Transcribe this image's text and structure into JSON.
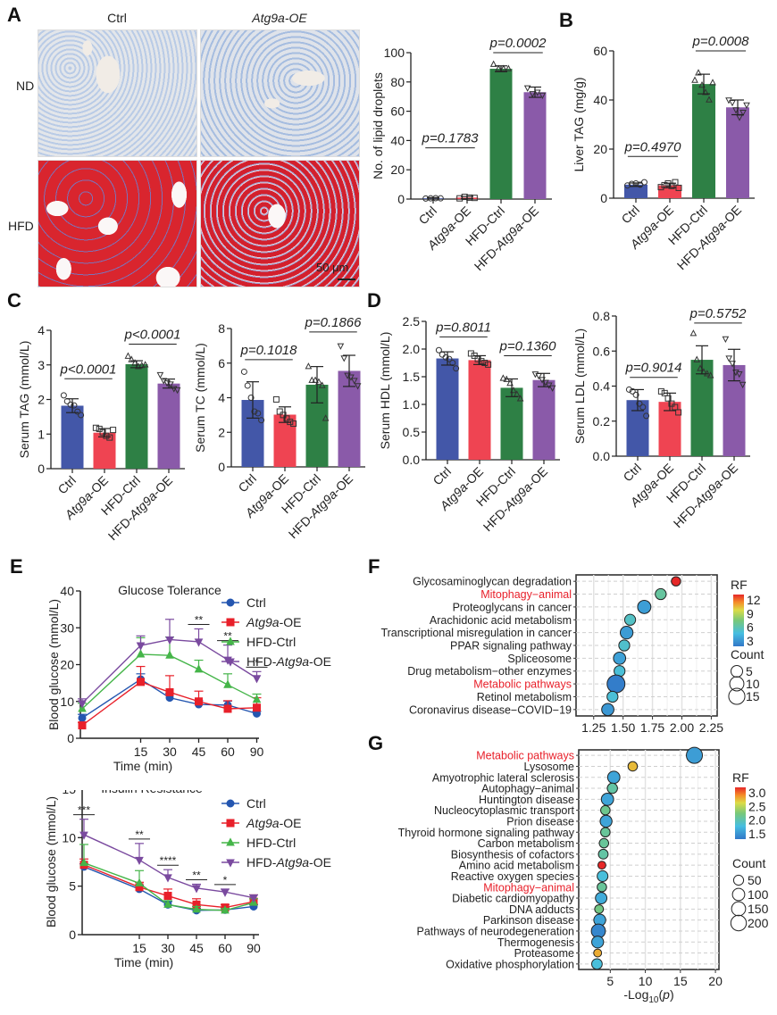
{
  "panel_labels": {
    "A": "A",
    "B": "B",
    "C": "C",
    "D": "D",
    "E": "E",
    "F": "F",
    "G": "G"
  },
  "micrographs": {
    "col_titles": [
      "Ctrl",
      "Atg9a-OE"
    ],
    "row_titles": [
      "ND",
      "HFD"
    ],
    "scale_bar": "50 μm",
    "stain_colors": {
      "nucleus_blue": "#7fa0d8",
      "lipid_red": "#d9252e",
      "background": "#e0e4ea"
    }
  },
  "groups": {
    "labels": [
      "Ctrl",
      "Atg9a-OE",
      "HFD-Ctrl",
      "HFD-Atg9a-OE"
    ],
    "colors": [
      "#4357a8",
      "#ef4452",
      "#2e8045",
      "#8a5aa9"
    ],
    "markers": [
      "circle",
      "square",
      "triangle-up",
      "triangle-down"
    ]
  },
  "chart_data": [
    {
      "id": "A-lipid",
      "type": "bar",
      "title": "",
      "xlabel": "",
      "ylabel": "No. of lipid droplets",
      "ylim": [
        0,
        100
      ],
      "yticks": [
        "0",
        "20",
        "40",
        "60",
        "80",
        "100"
      ],
      "categories": [
        "Ctrl",
        "Atg9a-OE",
        "HFD-Ctrl",
        "HFD-Atg9a-OE"
      ],
      "values": [
        0.5,
        1,
        89,
        73
      ],
      "errors": [
        0.5,
        0.8,
        2,
        3.5
      ],
      "points": [
        [
          0.4,
          0.5,
          0.6,
          0.5
        ],
        [
          0.5,
          1.5,
          1,
          0.8
        ],
        [
          92,
          89,
          89,
          89
        ],
        [
          76,
          72,
          73,
          71
        ]
      ],
      "comparisons": [
        {
          "pair": [
            0,
            1
          ],
          "label": "p=0.1783",
          "y": 35
        },
        {
          "pair": [
            2,
            3
          ],
          "label": "p=0.0002",
          "y": 100
        }
      ]
    },
    {
      "id": "B-liverTAG",
      "type": "bar",
      "ylabel": "Liver TAG (mg/g)",
      "ylim": [
        0,
        60
      ],
      "yticks": [
        "0",
        "20",
        "40",
        "60"
      ],
      "categories": [
        "Ctrl",
        "Atg9a-OE",
        "HFD-Ctrl",
        "HFD-Atg9a-OE"
      ],
      "values": [
        5.5,
        5.2,
        46.5,
        37
      ],
      "errors": [
        0.7,
        0.9,
        4,
        3
      ],
      "points": [
        [
          5.2,
          5.8,
          6,
          5.5,
          6.5
        ],
        [
          4.5,
          5.3,
          6,
          5,
          6.5,
          4.2
        ],
        [
          48,
          51,
          46,
          43,
          40,
          47
        ],
        [
          40,
          39,
          36,
          33,
          35,
          38
        ]
      ],
      "comparisons": [
        {
          "pair": [
            0,
            1
          ],
          "label": "p=0.4970",
          "y": 17
        },
        {
          "pair": [
            2,
            3
          ],
          "label": "p=0.0008",
          "y": 60
        }
      ]
    },
    {
      "id": "C-serumTAG",
      "type": "bar",
      "ylabel": "Serum TAG (mmol/L)",
      "ylim": [
        0,
        4
      ],
      "yticks": [
        "0",
        "1",
        "2",
        "3",
        "4"
      ],
      "categories": [
        "Ctrl",
        "Atg9a-OE",
        "HFD-Ctrl",
        "HFD-Atg9a-OE"
      ],
      "values": [
        1.82,
        1.04,
        3.02,
        2.46
      ],
      "errors": [
        0.2,
        0.12,
        0.1,
        0.13
      ],
      "points": [
        [
          2.12,
          1.95,
          1.85,
          1.83,
          1.65,
          1.55
        ],
        [
          1.18,
          1.15,
          1.05,
          0.95,
          0.9,
          1.12
        ],
        [
          3.25,
          3.15,
          3.05,
          2.95,
          2.98,
          3.0
        ],
        [
          2.72,
          2.55,
          2.48,
          2.45,
          2.32,
          2.28
        ]
      ],
      "comparisons": [
        {
          "pair": [
            0,
            1
          ],
          "label": "p<0.0001",
          "y": 2.6
        },
        {
          "pair": [
            2,
            3
          ],
          "label": "p<0.0001",
          "y": 3.6
        }
      ]
    },
    {
      "id": "C-serumTC",
      "type": "bar",
      "ylabel": "Serum TC (mmol/L)",
      "ylim": [
        0,
        8
      ],
      "yticks": [
        "0",
        "2",
        "4",
        "6",
        "8"
      ],
      "categories": [
        "Ctrl",
        "Atg9a-OE",
        "HFD-Ctrl",
        "HFD-Atg9a-OE"
      ],
      "values": [
        3.87,
        3.02,
        4.75,
        5.55
      ],
      "errors": [
        1.05,
        0.45,
        1.05,
        0.9
      ],
      "points": [
        [
          5.5,
          4.7,
          4.0,
          3.2,
          3.1,
          2.7
        ],
        [
          3.9,
          3.2,
          3.0,
          2.8,
          2.6,
          2.5
        ],
        [
          5.8,
          5.0,
          5.0,
          4.9,
          4.7,
          2.8
        ],
        [
          7.0,
          6.3,
          5.3,
          5.2,
          5.0,
          4.7
        ]
      ],
      "comparisons": [
        {
          "pair": [
            0,
            1
          ],
          "label": "p=0.1018",
          "y": 6.2
        },
        {
          "pair": [
            2,
            3
          ],
          "label": "p=0.1866",
          "y": 7.8
        }
      ]
    },
    {
      "id": "D-serumHDL",
      "type": "bar",
      "ylabel": "Serum HDL (mmol/L)",
      "ylim": [
        0,
        2.5
      ],
      "yticks": [
        "0.0",
        "0.5",
        "1.0",
        "1.5",
        "2.0",
        "2.5"
      ],
      "categories": [
        "Ctrl",
        "Atg9a-OE",
        "HFD-Ctrl",
        "HFD-Atg9a-OE"
      ],
      "values": [
        1.83,
        1.8,
        1.3,
        1.44
      ],
      "errors": [
        0.12,
        0.08,
        0.16,
        0.12
      ],
      "points": [
        [
          1.98,
          1.9,
          1.85,
          1.82,
          1.75,
          1.65
        ],
        [
          1.92,
          1.88,
          1.82,
          1.78,
          1.75,
          1.72
        ],
        [
          1.47,
          1.45,
          1.38,
          1.25,
          1.18,
          1.1
        ],
        [
          1.55,
          1.52,
          1.45,
          1.4,
          1.35,
          1.3
        ]
      ],
      "comparisons": [
        {
          "pair": [
            0,
            1
          ],
          "label": "p=0.8011",
          "y": 2.22
        },
        {
          "pair": [
            2,
            3
          ],
          "label": "p=0.1360",
          "y": 1.88
        }
      ]
    },
    {
      "id": "D-serumLDL",
      "type": "bar",
      "ylabel": "Serum LDL (mmol/L)",
      "ylim": [
        0,
        0.8
      ],
      "yticks": [
        "0.0",
        "0.2",
        "0.4",
        "0.6",
        "0.8"
      ],
      "categories": [
        "Ctrl",
        "Atg9a-OE",
        "HFD-Ctrl",
        "HFD-Atg9a-OE"
      ],
      "values": [
        0.32,
        0.31,
        0.55,
        0.52
      ],
      "errors": [
        0.06,
        0.05,
        0.08,
        0.09
      ],
      "points": [
        [
          0.38,
          0.37,
          0.35,
          0.3,
          0.28,
          0.23
        ],
        [
          0.37,
          0.36,
          0.33,
          0.3,
          0.28,
          0.25
        ],
        [
          0.7,
          0.55,
          0.5,
          0.48,
          0.47,
          0.46
        ],
        [
          0.67,
          0.56,
          0.53,
          0.48,
          0.47,
          0.41
        ]
      ],
      "comparisons": [
        {
          "pair": [
            0,
            1
          ],
          "label": "p=0.9014",
          "y": 0.45
        },
        {
          "pair": [
            2,
            3
          ],
          "label": "p=0.5752",
          "y": 0.76
        }
      ]
    },
    {
      "id": "E-glucose-tolerance",
      "type": "line",
      "title": "Glucose Tolerance",
      "xlabel": "Time (min)",
      "ylabel": "Blood glucose (mmol/L)",
      "ylim": [
        0,
        40
      ],
      "yticks": [
        "0",
        "10",
        "20",
        "30",
        "40"
      ],
      "x": [
        0,
        15,
        30,
        45,
        60,
        90
      ],
      "xticks": [
        "",
        "15",
        "30",
        "45",
        "60",
        "90"
      ],
      "series": [
        {
          "name": "Ctrl",
          "values": [
            5.5,
            16,
            11,
            9.2,
            9,
            6.7
          ],
          "errors": [
            1,
            1.5,
            1.2,
            1,
            1.1,
            0.6
          ]
        },
        {
          "name": "Atg9a-OE",
          "values": [
            3.5,
            15.3,
            12.5,
            10,
            8,
            8.3
          ],
          "errors": [
            0.8,
            4.2,
            4.5,
            2.8,
            2.2,
            2.7
          ]
        },
        {
          "name": "HFD-Ctrl",
          "values": [
            8,
            22.8,
            22.5,
            18.7,
            14.5,
            10.5
          ],
          "errors": [
            1.5,
            4.5,
            5,
            2.5,
            3,
            1.5
          ]
        },
        {
          "name": "HFD-Atg9a-OE",
          "values": [
            9.5,
            25.2,
            26.8,
            26.2,
            21.3,
            16.3
          ],
          "errors": [
            1.2,
            2.6,
            5.5,
            3.5,
            4,
            1.8
          ]
        }
      ],
      "annotations": [
        {
          "x": 45,
          "label": "**"
        },
        {
          "x": 60,
          "label": "**"
        },
        {
          "x": 90,
          "label": "*"
        }
      ],
      "legend": "top-right"
    },
    {
      "id": "E-insulin-resistance",
      "type": "line",
      "title": "Insulin Resistance",
      "xlabel": "Time (min)",
      "ylabel": "Blood glucose (mmol/L)",
      "ylim": [
        0,
        15
      ],
      "yticks": [
        "0",
        "5",
        "10",
        "15"
      ],
      "x": [
        0,
        15,
        30,
        45,
        60,
        90
      ],
      "xticks": [
        "",
        "15",
        "30",
        "45",
        "60",
        "90"
      ],
      "series": [
        {
          "name": "Ctrl",
          "values": [
            7,
            4.7,
            3.1,
            2.5,
            2.55,
            2.9
          ],
          "errors": [
            0.3,
            0.4,
            0.3,
            0.2,
            0.2,
            0.2
          ]
        },
        {
          "name": "Atg9a-OE",
          "values": [
            7.2,
            4.9,
            4.0,
            3.1,
            2.8,
            3.4
          ],
          "errors": [
            0.6,
            0.5,
            0.7,
            0.6,
            0.3,
            0.7
          ]
        },
        {
          "name": "HFD-Ctrl",
          "values": [
            7.4,
            5.3,
            3.1,
            2.6,
            2.5,
            3.3
          ],
          "errors": [
            1.9,
            1.3,
            0.4,
            0.3,
            0.2,
            0.4
          ]
        },
        {
          "name": "HFD-Atg9a-OE",
          "values": [
            10.3,
            7.7,
            5.9,
            4.8,
            4.4,
            3.8
          ],
          "errors": [
            1.6,
            1.7,
            0.8,
            0.4,
            0.3,
            0.3
          ]
        }
      ],
      "annotations": [
        {
          "x": 0,
          "label": "***"
        },
        {
          "x": 15,
          "label": "**"
        },
        {
          "x": 30,
          "label": "****"
        },
        {
          "x": 45,
          "label": "**"
        },
        {
          "x": 60,
          "label": "*"
        }
      ],
      "legend": "top-right"
    },
    {
      "id": "F-enrichment",
      "type": "scatter",
      "xlabel": "-Log10(p)",
      "xlim": [
        1.1,
        2.3
      ],
      "xticks": [
        1.25,
        1.5,
        1.75,
        2.0,
        2.25
      ],
      "xtick_labels": [
        "1.25",
        "1.50",
        "1.75",
        "2.00",
        "2.25"
      ],
      "terms": [
        {
          "name": "Glycosaminoglycan degradation",
          "x": 1.95,
          "rf": 12,
          "count": 2,
          "highlight": false
        },
        {
          "name": "Mitophagy−animal",
          "x": 1.82,
          "rf": 5.5,
          "count": 4,
          "highlight": true
        },
        {
          "name": "Proteoglycans in cancer",
          "x": 1.68,
          "rf": 2.5,
          "count": 8,
          "highlight": false
        },
        {
          "name": "Arachidonic acid metabolism",
          "x": 1.56,
          "rf": 4.5,
          "count": 4,
          "highlight": false
        },
        {
          "name": "Transcriptional misregulation in cancer",
          "x": 1.53,
          "rf": 2.4,
          "count": 7,
          "highlight": false
        },
        {
          "name": "PPAR signaling pathway",
          "x": 1.51,
          "rf": 4.3,
          "count": 4,
          "highlight": false
        },
        {
          "name": "Spliceosome",
          "x": 1.47,
          "rf": 2.6,
          "count": 6,
          "highlight": false
        },
        {
          "name": "Drug metabolism−other enzymes",
          "x": 1.47,
          "rf": 4,
          "count": 4,
          "highlight": false
        },
        {
          "name": "Metabolic pathways",
          "x": 1.44,
          "rf": 1.2,
          "count": 20,
          "highlight": true
        },
        {
          "name": "Retinol metabolism",
          "x": 1.41,
          "rf": 4,
          "count": 4,
          "highlight": false
        },
        {
          "name": "Coronavirus disease−COVID−19",
          "x": 1.37,
          "rf": 2.2,
          "count": 6,
          "highlight": false
        }
      ],
      "color_legend": {
        "title": "RF",
        "ticks": [
          "12",
          "9",
          "6",
          "3"
        ],
        "range": [
          1,
          12
        ]
      },
      "size_legend": {
        "title": "Count",
        "values": [
          "5",
          "10",
          "15"
        ]
      }
    },
    {
      "id": "G-enrichment",
      "type": "scatter",
      "xlabel": "-Log10(p)",
      "xlim": [
        0.5,
        20.5
      ],
      "xticks": [
        5,
        10,
        15,
        20
      ],
      "xtick_labels": [
        "5",
        "10",
        "15",
        "20"
      ],
      "terms": [
        {
          "name": "Metabolic pathways",
          "x": 17,
          "rf": 1.55,
          "count": 220,
          "highlight": true
        },
        {
          "name": "Lysosome",
          "x": 8.2,
          "rf": 2.75,
          "count": 40,
          "highlight": false
        },
        {
          "name": "Amyotrophic lateral sclerosis",
          "x": 5.5,
          "rf": 1.6,
          "count": 100,
          "highlight": false
        },
        {
          "name": "Autophagy−animal",
          "x": 5.3,
          "rf": 2.05,
          "count": 55,
          "highlight": false
        },
        {
          "name": "Huntington disease",
          "x": 4.6,
          "rf": 1.6,
          "count": 100,
          "highlight": false
        },
        {
          "name": "Nucleocytoplasmic transport",
          "x": 4.3,
          "rf": 2.15,
          "count": 40,
          "highlight": false
        },
        {
          "name": "Prion disease",
          "x": 4.4,
          "rf": 1.6,
          "count": 90,
          "highlight": false
        },
        {
          "name": "Thyroid hormone signaling pathway",
          "x": 4.3,
          "rf": 2.1,
          "count": 40,
          "highlight": false
        },
        {
          "name": "Carbon metabolism",
          "x": 4.1,
          "rf": 2.1,
          "count": 40,
          "highlight": false
        },
        {
          "name": "Biosynthesis of cofactors",
          "x": 4.0,
          "rf": 2.05,
          "count": 45,
          "highlight": false
        },
        {
          "name": "Amino acid metabolism",
          "x": 3.8,
          "rf": 3.2,
          "count": 20,
          "highlight": false
        },
        {
          "name": "Reactive oxygen species",
          "x": 3.9,
          "rf": 1.8,
          "count": 65,
          "highlight": false
        },
        {
          "name": "Mitophagy−animal",
          "x": 3.8,
          "rf": 2.1,
          "count": 40,
          "highlight": true
        },
        {
          "name": "Diabetic cardiomyopathy",
          "x": 3.7,
          "rf": 1.65,
          "count": 80,
          "highlight": false
        },
        {
          "name": "DNA adducts",
          "x": 3.4,
          "rf": 2.2,
          "count": 30,
          "highlight": false
        },
        {
          "name": "Parkinson disease",
          "x": 3.5,
          "rf": 1.6,
          "count": 90,
          "highlight": false
        },
        {
          "name": "Pathways of neurodegeneration",
          "x": 3.3,
          "rf": 1.4,
          "count": 150,
          "highlight": false
        },
        {
          "name": "Thermogenesis",
          "x": 3.2,
          "rf": 1.6,
          "count": 90,
          "highlight": false
        },
        {
          "name": "Proteasome",
          "x": 3.2,
          "rf": 2.8,
          "count": 20,
          "highlight": false
        },
        {
          "name": "Oxidative phosphorylation",
          "x": 3.1,
          "rf": 1.8,
          "count": 60,
          "highlight": false
        }
      ],
      "color_legend": {
        "title": "RF",
        "ticks": [
          "3.0",
          "2.5",
          "2.0",
          "1.5"
        ],
        "range": [
          1.3,
          3.2
        ]
      },
      "size_legend": {
        "title": "Count",
        "values": [
          "50",
          "100",
          "150",
          "200"
        ]
      }
    }
  ],
  "highlight_color": "#e8202a"
}
